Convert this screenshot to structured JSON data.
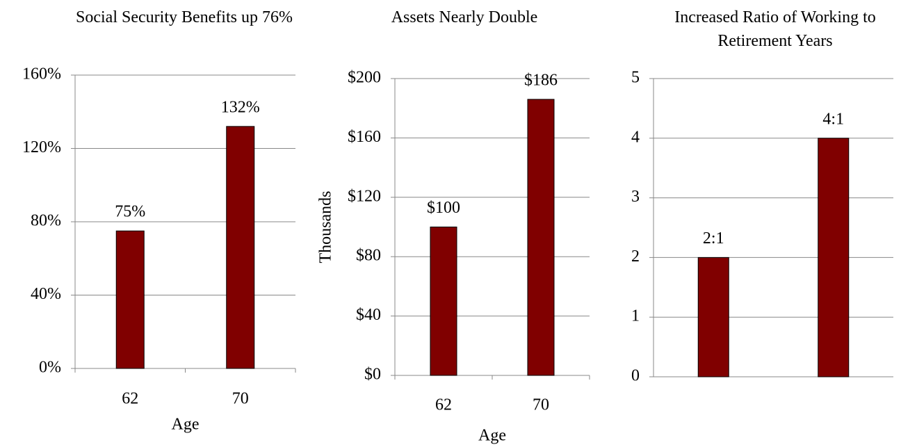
{
  "chart_data": [
    {
      "type": "bar",
      "title": "Social Security Benefits up 76%",
      "categories": [
        "62",
        "70"
      ],
      "values": [
        75,
        132
      ],
      "value_labels": [
        "75%",
        "132%"
      ],
      "color": "#800000",
      "ylim": [
        0,
        160
      ],
      "yticks": [
        {
          "value": 0,
          "label": "0%"
        },
        {
          "value": 40,
          "label": "40%"
        },
        {
          "value": 80,
          "label": "80%"
        },
        {
          "value": 120,
          "label": "120%"
        },
        {
          "value": 160,
          "label": "160%"
        }
      ],
      "grid": true,
      "x_label": "Age"
    },
    {
      "type": "bar",
      "title": "Assets Nearly Double",
      "categories": [
        "62",
        "70"
      ],
      "values": [
        100,
        186
      ],
      "value_labels": [
        "$100",
        "$186"
      ],
      "color": "#800000",
      "ylim": [
        0,
        200
      ],
      "yticks": [
        {
          "value": 0,
          "label": "$0"
        },
        {
          "value": 40,
          "label": "$40"
        },
        {
          "value": 80,
          "label": "$80"
        },
        {
          "value": 120,
          "label": "$120"
        },
        {
          "value": 160,
          "label": "$160"
        },
        {
          "value": 200,
          "label": "$200"
        }
      ],
      "grid": true,
      "x_label": "Age",
      "y_label": "Thousands"
    },
    {
      "type": "bar",
      "title": "Increased Ratio of Working to Retirement Years",
      "categories": [
        null,
        null
      ],
      "values": [
        2,
        4
      ],
      "value_labels": [
        "2:1",
        "4:1"
      ],
      "color": "#800000",
      "ylim": [
        0,
        5
      ],
      "yticks": [
        0,
        1,
        2,
        3,
        4,
        5
      ],
      "grid": true
    }
  ]
}
